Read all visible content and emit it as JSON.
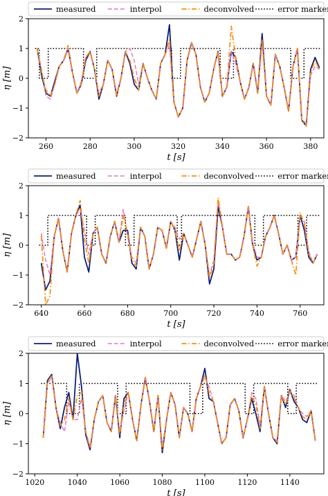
{
  "chart_data": [
    {
      "type": "line",
      "title": "",
      "xlabel": "t [s]",
      "ylabel": "η [m]",
      "xlim": [
        252,
        386
      ],
      "ylim": [
        -2,
        2
      ],
      "xticks": [
        260,
        280,
        300,
        320,
        340,
        360,
        380
      ],
      "yticks": [
        -2,
        -1,
        0,
        1,
        2
      ],
      "legend_position": "top",
      "grid": false,
      "x": [
        256,
        258,
        260,
        262,
        264,
        266,
        268,
        270,
        272,
        274,
        276,
        278,
        280,
        282,
        284,
        286,
        288,
        290,
        292,
        294,
        296,
        298,
        300,
        302,
        304,
        306,
        308,
        310,
        312,
        314,
        316,
        318,
        320,
        322,
        324,
        326,
        328,
        330,
        332,
        334,
        336,
        338,
        340,
        342,
        344,
        346,
        348,
        350,
        352,
        354,
        356,
        358,
        360,
        362,
        364,
        366,
        368,
        370,
        372,
        374,
        376,
        378,
        380,
        382,
        384
      ],
      "series": [
        {
          "name": "measured",
          "color": "#0b1f7a",
          "style": "solid",
          "values": [
            1.0,
            0.1,
            -0.5,
            -0.6,
            -0.1,
            0.4,
            0.6,
            1.0,
            0.2,
            -0.5,
            -0.2,
            0.6,
            0.9,
            0.3,
            -0.7,
            -0.2,
            0.6,
            0.3,
            -0.6,
            0.0,
            0.9,
            0.5,
            -0.2,
            -0.4,
            0.5,
            0.0,
            -0.4,
            -0.7,
            0.5,
            0.8,
            1.8,
            -0.8,
            -1.3,
            -1.0,
            0.6,
            1.2,
            0.8,
            -0.3,
            -0.8,
            -0.5,
            0.3,
            0.9,
            -0.6,
            -0.3,
            0.9,
            0.7,
            -0.1,
            -0.7,
            -0.3,
            0.5,
            -0.5,
            1.5,
            -0.6,
            -0.9,
            0.8,
            0.4,
            -0.3,
            -1.1,
            0.4,
            1.0,
            -1.4,
            -1.6,
            0.3,
            0.7,
            0.35
          ]
        },
        {
          "name": "interpol",
          "color": "#e377c2",
          "style": "dashed",
          "values": [
            1.0,
            0.3,
            -0.6,
            -0.7,
            -0.2,
            0.4,
            0.6,
            1.0,
            0.2,
            -0.5,
            -0.1,
            0.7,
            0.9,
            0.3,
            -0.5,
            -0.2,
            0.6,
            0.3,
            -0.5,
            0.0,
            0.9,
            1.0,
            0.6,
            -0.2,
            0.5,
            0.0,
            -0.4,
            -0.7,
            0.5,
            0.8,
            1.1,
            -0.8,
            -1.3,
            -1.0,
            0.6,
            1.2,
            0.8,
            -0.3,
            -0.8,
            -0.5,
            0.3,
            0.9,
            -0.6,
            -0.3,
            0.9,
            0.5,
            -0.1,
            -0.7,
            -0.3,
            0.5,
            -0.5,
            1.2,
            -0.6,
            -0.9,
            0.8,
            0.4,
            -0.3,
            -1.1,
            0.4,
            1.0,
            -1.4,
            -1.5,
            0.1,
            0.4,
            0.3
          ]
        },
        {
          "name": "deconvolved",
          "color": "#ff8c00",
          "style": "dashdot",
          "values": [
            1.0,
            0.2,
            -0.4,
            -0.6,
            -0.2,
            0.4,
            0.6,
            1.1,
            0.2,
            -0.5,
            -0.2,
            0.7,
            0.9,
            0.3,
            -0.6,
            -0.2,
            0.6,
            0.3,
            -0.6,
            0.0,
            0.9,
            0.6,
            0.0,
            -0.4,
            0.5,
            0.0,
            -0.4,
            -0.7,
            0.5,
            0.8,
            1.3,
            -0.8,
            -1.3,
            -1.0,
            0.6,
            1.2,
            0.8,
            -0.3,
            -0.8,
            -0.5,
            0.3,
            0.9,
            -0.6,
            -0.3,
            1.75,
            0.7,
            -0.1,
            -0.7,
            -0.3,
            0.5,
            -0.5,
            1.3,
            -0.6,
            -0.9,
            0.8,
            0.4,
            -0.3,
            -1.1,
            0.4,
            1.0,
            -1.4,
            -1.6,
            0.2,
            0.6,
            0.3
          ]
        },
        {
          "name": "error marker",
          "color": "#000000",
          "style": "dotted",
          "step": true,
          "values": [
            1,
            0,
            0,
            1,
            1,
            1,
            1,
            1,
            1,
            1,
            1,
            0,
            0,
            0,
            1,
            1,
            1,
            1,
            1,
            1,
            1,
            1,
            1,
            1,
            1,
            1,
            1,
            1,
            1,
            1,
            1,
            0,
            0,
            1,
            1,
            1,
            1,
            1,
            1,
            1,
            1,
            1,
            0,
            0,
            0,
            1,
            1,
            1,
            1,
            1,
            1,
            1,
            1,
            1,
            1,
            1,
            1,
            1,
            0,
            0,
            0,
            1,
            1,
            1,
            1
          ]
        }
      ]
    },
    {
      "type": "line",
      "title": "",
      "xlabel": "t [s]",
      "ylabel": "η [m]",
      "xlim": [
        634,
        771
      ],
      "ylim": [
        -2,
        2
      ],
      "xticks": [
        640,
        660,
        680,
        700,
        720,
        740,
        760
      ],
      "yticks": [
        -2,
        -1,
        0,
        1,
        2
      ],
      "legend_position": "top",
      "grid": false,
      "x": [
        640,
        642,
        644,
        646,
        648,
        650,
        652,
        654,
        656,
        658,
        660,
        662,
        664,
        666,
        668,
        670,
        672,
        674,
        676,
        678,
        680,
        682,
        684,
        686,
        688,
        690,
        692,
        694,
        696,
        698,
        700,
        702,
        704,
        706,
        708,
        710,
        712,
        714,
        716,
        718,
        720,
        722,
        724,
        726,
        728,
        730,
        732,
        734,
        736,
        738,
        740,
        742,
        744,
        746,
        748,
        750,
        752,
        754,
        756,
        758,
        760,
        762,
        764,
        766,
        768
      ],
      "series": [
        {
          "name": "measured",
          "color": "#0b1f7a",
          "style": "solid",
          "values": [
            -0.6,
            -1.5,
            -1.2,
            0.3,
            0.9,
            -0.2,
            -0.9,
            0.4,
            1.0,
            1.35,
            -0.4,
            -0.9,
            0.4,
            0.6,
            -0.3,
            -0.6,
            0.3,
            0.8,
            0.1,
            0.5,
            0.5,
            -0.6,
            -0.8,
            0.6,
            0.3,
            -0.8,
            -0.3,
            0.6,
            0.5,
            -0.1,
            0.8,
            0.5,
            -0.5,
            0.4,
            0.0,
            -0.4,
            0.2,
            0.8,
            0.0,
            -1.3,
            -0.8,
            1.3,
            0.6,
            -0.3,
            -0.3,
            -0.5,
            -0.4,
            0.3,
            1.3,
            0.0,
            -0.5,
            -0.4,
            0.3,
            0.6,
            1.0,
            0.4,
            -0.3,
            0.0,
            -0.5,
            -0.4,
            1.0,
            0.5,
            -0.4,
            -0.6,
            -0.3
          ]
        },
        {
          "name": "interpol",
          "color": "#e377c2",
          "style": "dashed",
          "values": [
            0.4,
            -0.5,
            -1.0,
            0.3,
            0.9,
            -0.2,
            -0.9,
            0.4,
            1.0,
            1.2,
            0.5,
            -0.3,
            0.4,
            0.6,
            -0.3,
            -0.6,
            0.3,
            0.8,
            0.1,
            1.2,
            0.3,
            -0.4,
            -0.6,
            0.6,
            0.3,
            -0.8,
            -0.3,
            0.6,
            0.5,
            -0.1,
            0.8,
            0.6,
            0.2,
            0.4,
            0.0,
            -0.4,
            0.2,
            0.8,
            0.0,
            -1.0,
            -0.5,
            1.5,
            0.6,
            -0.3,
            -0.3,
            -0.5,
            -0.4,
            0.3,
            1.3,
            0.1,
            -0.4,
            -0.4,
            0.3,
            0.6,
            1.0,
            0.4,
            -0.3,
            0.0,
            -0.5,
            -0.4,
            1.0,
            0.8,
            -0.2,
            -0.6,
            -0.3
          ]
        },
        {
          "name": "deconvolved",
          "color": "#ff8c00",
          "style": "dashdot",
          "values": [
            0.3,
            -2.0,
            -1.7,
            0.3,
            0.9,
            -0.2,
            -0.9,
            0.4,
            1.0,
            1.5,
            0.2,
            -0.6,
            0.4,
            0.6,
            -0.3,
            -0.6,
            0.3,
            0.8,
            0.1,
            1.0,
            0.4,
            -0.5,
            -0.7,
            0.6,
            0.3,
            -0.8,
            -0.3,
            0.6,
            0.5,
            -0.1,
            0.8,
            0.5,
            -0.2,
            0.4,
            0.0,
            -0.4,
            0.2,
            0.8,
            0.0,
            -1.1,
            -0.6,
            1.6,
            0.6,
            -0.3,
            -0.3,
            -0.5,
            -0.4,
            0.3,
            1.3,
            0.0,
            -0.7,
            -0.4,
            0.3,
            0.6,
            1.0,
            0.4,
            -0.3,
            0.0,
            -0.5,
            -1.0,
            1.1,
            0.7,
            -0.3,
            -0.6,
            -0.3
          ]
        },
        {
          "name": "error marker",
          "color": "#000000",
          "style": "dotted",
          "step": true,
          "values": [
            0,
            0,
            1,
            1,
            1,
            1,
            1,
            1,
            1,
            1,
            1,
            0,
            0,
            1,
            1,
            1,
            1,
            1,
            1,
            1,
            0,
            0,
            1,
            1,
            1,
            1,
            1,
            1,
            1,
            1,
            1,
            1,
            0,
            1,
            1,
            1,
            1,
            1,
            1,
            1,
            1,
            1,
            1,
            1,
            1,
            1,
            1,
            1,
            1,
            1,
            0,
            0,
            1,
            1,
            1,
            1,
            1,
            1,
            1,
            1,
            0,
            0,
            1,
            1,
            1
          ]
        }
      ]
    },
    {
      "type": "line",
      "title": "",
      "xlabel": "t [s]",
      "ylabel": "η [m]",
      "xlim": [
        1017,
        1156
      ],
      "ylim": [
        -2,
        2
      ],
      "xticks": [
        1020,
        1040,
        1060,
        1080,
        1100,
        1120,
        1140
      ],
      "yticks": [
        -2,
        -1,
        0,
        1,
        2
      ],
      "legend_position": "top",
      "grid": false,
      "x": [
        1024,
        1026,
        1028,
        1030,
        1032,
        1034,
        1036,
        1038,
        1040,
        1042,
        1044,
        1046,
        1048,
        1050,
        1052,
        1054,
        1056,
        1058,
        1060,
        1062,
        1064,
        1066,
        1068,
        1070,
        1072,
        1074,
        1076,
        1078,
        1080,
        1082,
        1084,
        1086,
        1088,
        1090,
        1092,
        1094,
        1096,
        1098,
        1100,
        1102,
        1104,
        1106,
        1108,
        1110,
        1112,
        1114,
        1116,
        1118,
        1120,
        1122,
        1124,
        1126,
        1128,
        1130,
        1132,
        1134,
        1136,
        1138,
        1140,
        1142,
        1144,
        1146,
        1148,
        1150,
        1152
      ],
      "series": [
        {
          "name": "measured",
          "color": "#0b1f7a",
          "style": "solid",
          "values": [
            -0.8,
            1.1,
            1.3,
            0.2,
            -0.5,
            0.2,
            0.7,
            -0.2,
            2.0,
            0.9,
            -0.7,
            -1.2,
            -0.2,
            0.4,
            0.6,
            -0.3,
            -0.6,
            0.6,
            -0.8,
            0.5,
            0.7,
            -0.2,
            -0.9,
            0.3,
            1.2,
            0.4,
            -0.6,
            0.6,
            -1.3,
            -0.2,
            0.7,
            0.3,
            -0.8,
            0.2,
            0.0,
            -0.6,
            0.5,
            0.9,
            1.5,
            0.5,
            0.4,
            -0.3,
            -1.0,
            -0.8,
            0.3,
            0.5,
            0.1,
            -0.8,
            -0.2,
            0.5,
            0.0,
            -0.6,
            0.9,
            0.0,
            -0.8,
            -1.0,
            0.6,
            0.2,
            0.8,
            0.4,
            0.2,
            -0.2,
            -0.3,
            0.1,
            -0.9
          ]
        },
        {
          "name": "interpol",
          "color": "#e377c2",
          "style": "dashed",
          "values": [
            -0.8,
            1.0,
            1.2,
            0.2,
            -0.3,
            -0.6,
            0.4,
            -0.2,
            -0.2,
            0.5,
            -0.6,
            -1.1,
            -0.2,
            0.4,
            0.6,
            -0.3,
            -0.6,
            0.6,
            -0.6,
            0.1,
            0.7,
            -0.2,
            -0.9,
            0.3,
            1.2,
            0.4,
            -0.6,
            0.6,
            -1.1,
            -0.2,
            0.7,
            0.3,
            -0.8,
            0.2,
            0.0,
            -0.6,
            0.5,
            0.9,
            1.2,
            0.9,
            0.4,
            -0.3,
            -1.0,
            -0.8,
            0.3,
            0.5,
            0.1,
            -0.8,
            -0.2,
            0.7,
            0.5,
            -0.4,
            0.9,
            0.0,
            -0.8,
            -0.9,
            0.6,
            0.4,
            0.7,
            0.6,
            0.2,
            0.0,
            -0.1,
            0.1,
            -0.9
          ]
        },
        {
          "name": "deconvolved",
          "color": "#ff8c00",
          "style": "dashdot",
          "values": [
            -0.8,
            1.05,
            1.25,
            0.2,
            -0.4,
            -0.2,
            0.5,
            -0.2,
            0.6,
            0.7,
            -0.6,
            -1.15,
            -0.2,
            0.4,
            0.6,
            -0.3,
            -0.6,
            0.6,
            -0.7,
            0.3,
            0.7,
            -0.2,
            -0.9,
            0.3,
            1.2,
            0.4,
            -0.6,
            0.6,
            -1.2,
            -0.2,
            0.7,
            0.3,
            -0.8,
            0.2,
            0.0,
            -0.6,
            0.5,
            0.9,
            1.3,
            0.7,
            0.4,
            -0.3,
            -1.0,
            -0.8,
            0.3,
            0.5,
            0.1,
            -0.8,
            -0.2,
            0.6,
            0.3,
            -0.5,
            0.9,
            0.0,
            -0.8,
            -0.95,
            0.6,
            0.3,
            0.75,
            0.5,
            0.2,
            -0.1,
            -0.2,
            0.1,
            -0.9
          ]
        },
        {
          "name": "error marker",
          "color": "#000000",
          "style": "dotted",
          "step": true,
          "values": [
            1,
            1,
            1,
            1,
            1,
            1,
            0,
            0,
            0,
            1,
            1,
            1,
            1,
            1,
            1,
            1,
            1,
            1,
            0,
            0,
            1,
            1,
            1,
            1,
            1,
            1,
            1,
            1,
            1,
            1,
            1,
            1,
            1,
            1,
            1,
            0,
            0,
            0,
            1,
            1,
            1,
            1,
            1,
            1,
            1,
            1,
            1,
            1,
            0,
            0,
            1,
            1,
            1,
            1,
            1,
            1,
            1,
            1,
            0,
            0,
            1,
            1,
            1,
            1,
            1
          ]
        }
      ]
    }
  ]
}
